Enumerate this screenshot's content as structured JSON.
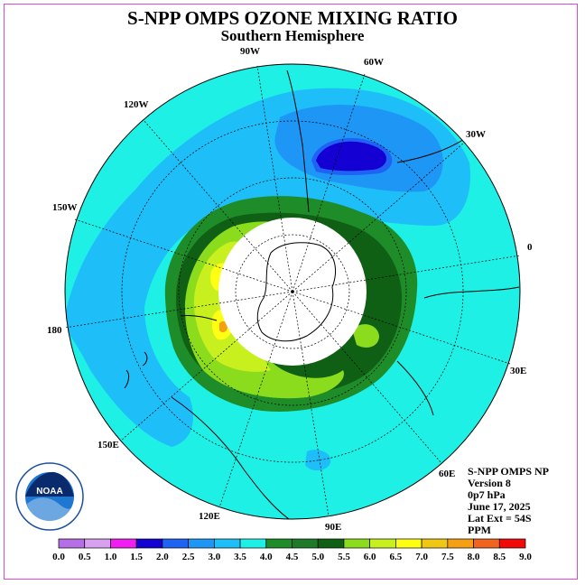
{
  "title": "S-NPP OMPS OZONE MIXING RATIO",
  "subtitle": "Southern Hemisphere",
  "info": {
    "line1": "S-NPP OMPS NP",
    "line2": "Version 8",
    "line3": "0p7 hPa",
    "line4": "June 17, 2025",
    "line5": "Lat Ext = 54S",
    "line6": "PPM"
  },
  "logo_text": "NOAA",
  "logo_ring_text": "NATIONAL OCEANIC AND ATMOSPHERIC ADMINISTRATION · U.S. DEPARTMENT OF COMMERCE",
  "longitude_labels": [
    "90W",
    "60W",
    "30W",
    "0",
    "30E",
    "60E",
    "90E",
    "120E",
    "150E",
    "180",
    "150W",
    "120W"
  ],
  "colorbar": {
    "ticks": [
      "0.0",
      "0.5",
      "1.0",
      "1.5",
      "2.0",
      "2.5",
      "3.0",
      "3.5",
      "4.0",
      "4.5",
      "5.0",
      "5.5",
      "6.0",
      "6.5",
      "7.0",
      "7.5",
      "8.0",
      "8.5",
      "9.0"
    ],
    "colors": [
      "#b46ee6",
      "#d8a0f0",
      "#f01ef0",
      "#1400d2",
      "#1f63f5",
      "#1e96f5",
      "#1ebef8",
      "#1ef0e6",
      "#1e8c28",
      "#1e7a28",
      "#0f5f14",
      "#8cdc1e",
      "#c8f01e",
      "#ffff14",
      "#f0c814",
      "#f5a014",
      "#f0641e",
      "#f00a0a",
      "#825a46"
    ]
  },
  "map_colors": {
    "background_ocean": "#1ef0e6",
    "blue_light": "#1ebef8",
    "blue_mid": "#1e96f5",
    "blue_dark": "#1400d2",
    "green_dark": "#1e8c28",
    "green_darker": "#0f5f14",
    "green_light": "#8cdc1e",
    "yellow": "#ffff14",
    "orange": "#f5a014",
    "no_data": "#ffffff"
  }
}
